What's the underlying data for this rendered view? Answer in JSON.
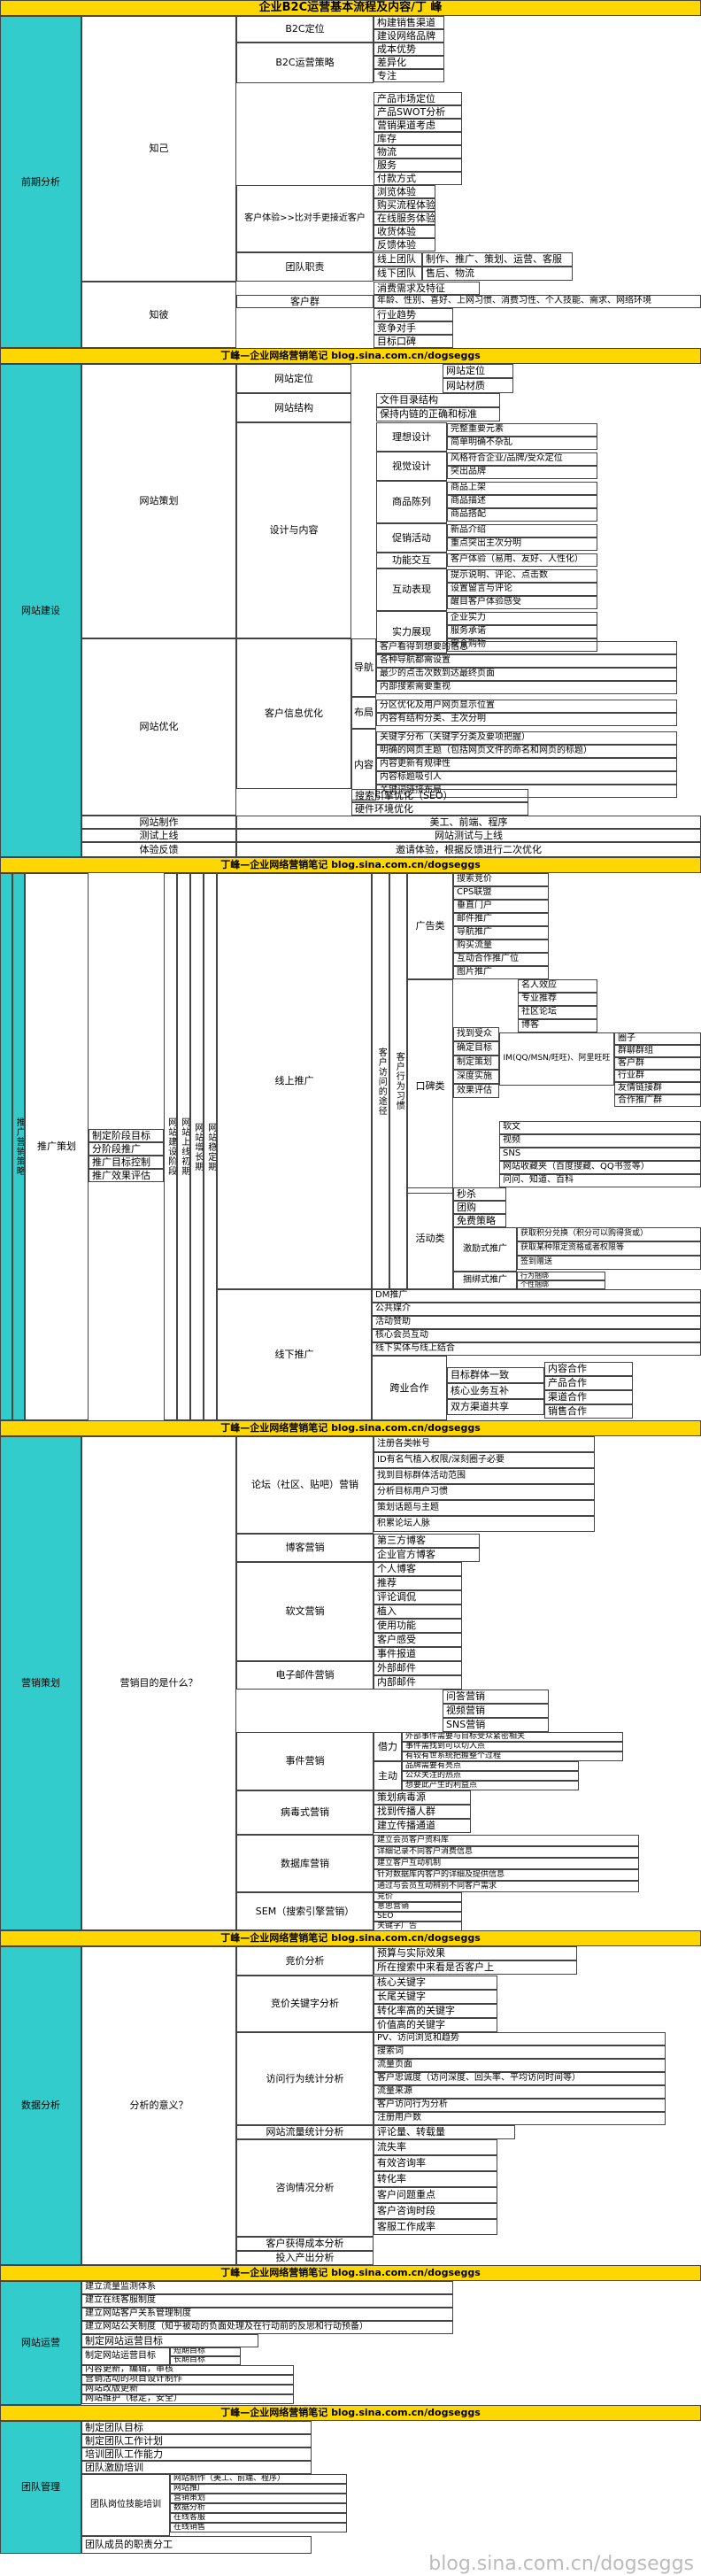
{
  "title": "企业B2C运营基本流程及内容/丁 峰",
  "banners": [
    "丁峰—企业网络营销笔记 blog.sina.com.cn/dogseggs",
    "丁峰—企业网络营销笔记 blog.sina.com.cn/dogseggs",
    "丁峰—企业网络营销笔记 blog.sina.com.cn/dogseggs",
    "丁峰—企业网络营销笔记 blog.sina.com.cn/dogseggs",
    "丁峰—企业网络营销笔记 blog.sina.com.cn/dogseggs",
    "丁峰—企业网络营销笔记 blog.sina.com.cn/dogseggs"
  ],
  "watermark": "blog.sina.com.cn/dogseggs",
  "colors": {
    "title_bg": "#ffd700",
    "banner_bg": "#ffd700",
    "section_bg": "#33cccc",
    "body_bg": "#ffffff"
  },
  "sections": {
    "s1": {
      "name": "前期分析",
      "zhiji": "知己",
      "zhibi": "知彼",
      "b2c_pos": "B2C定位",
      "b2c_pos_items": [
        "构建销售渠道",
        "建设网络品牌"
      ],
      "b2c_strategy": "B2C运营策略",
      "b2c_strategy_items": [
        "成本优势",
        "差异化",
        "专注"
      ],
      "standalone": [
        "产品市场定位",
        "产品SWOT分析",
        "营销渠道考虑",
        "库存",
        "物流",
        "服务",
        "付款方式"
      ],
      "experience": "客户体验>>比对手更接近客户",
      "experience_items": [
        "浏览体验",
        "购买流程体验",
        "在线服务体验",
        "收货体验",
        "反馈体验"
      ],
      "team": "团队职责",
      "team_rows": [
        [
          "线上团队",
          "制作、推广、策划、运营、客服"
        ],
        [
          "线下团队",
          "售后、物流"
        ]
      ],
      "consumer": "消费需求及特征",
      "customer": "客户群",
      "customer_detail": "年龄、性别、喜好、上网习惯、消费习性、个人技能、需求、网络环境",
      "competitors": [
        "行业趋势",
        "竞争对手",
        "目标口碑"
      ]
    },
    "s2": {
      "name": "网站建设",
      "planning": "网站策划",
      "optimize": "网站优化",
      "positioning": "网站定位",
      "theme": "网站材质",
      "structure": "网站结构",
      "structure_items": [
        "文件目录结构",
        "保持内链的正确和标准"
      ],
      "design": "设计与内容",
      "design_groups": [
        {
          "name": "理想设计",
          "items": [
            "完整重要元素",
            "简单明确不杂乱"
          ]
        },
        {
          "name": "视觉设计",
          "items": [
            "风格符合企业/品牌/受众定位",
            "突出品牌"
          ]
        },
        {
          "name": "商品陈列",
          "items": [
            "商品上架",
            "商品描述",
            "商品搭配"
          ]
        },
        {
          "name": "促销活动",
          "items": [
            "新品介绍",
            "重点突出主次分明"
          ]
        },
        {
          "name": "功能交互",
          "items": [
            "客户体验（易用、友好、人性化）"
          ]
        },
        {
          "name": "互动表现",
          "items": [
            "提示说明、评论、点击数",
            "设置留言与评论",
            "醒目客户体验感受"
          ]
        },
        {
          "name": "实力展现",
          "items": [
            "企业实力",
            "服务承诺",
            "安全购物"
          ]
        }
      ],
      "customer_info": "客户信息优化",
      "info_groups": [
        {
          "name": "导航",
          "items": [
            "客户看得到想要的信息",
            "各种导航都需设置",
            "最少的点击次数到达最终页面",
            "内部搜索需要重视"
          ]
        },
        {
          "name": "布局",
          "items": [
            "分区优化及用户网页显示位置",
            "内容有结构分类、主次分明"
          ]
        },
        {
          "name": "内容",
          "items": [
            "关键字分布（关键字分类及要项把握）",
            "明确的网页主题（包括网页文件的命名和网页的标题）",
            "内容更新有规律性",
            "内容标题吸引人",
            "关键词链接布局"
          ]
        }
      ],
      "seo_items": [
        "搜索引擎优化（SEO）",
        "硬件环境优化"
      ],
      "make": "网站制作",
      "make_detail": "美工、前端、程序",
      "test": "测试上线",
      "test_detail": "网站测试与上线",
      "experience": "体验反馈",
      "experience_detail": "邀请体验，根据反馈进行二次优化"
    },
    "s3": {
      "name": "推广营销策略",
      "plan": "推广策划",
      "plan_items": [
        "制定阶段目标",
        "分阶段推广",
        "推广目标控制",
        "推广效果评估"
      ],
      "vcols": [
        "网站建设阶段",
        "网站上线初期",
        "网站增长期",
        "网站稳定期"
      ],
      "online": "线上推广",
      "offline": "线下推广",
      "channel": "客户访问的途径",
      "inside": "客户行为习惯",
      "ads": "广告类",
      "ad_items": [
        "搜索竞价",
        "CPS联盟",
        "垂直门户",
        "邮件推广",
        "导航推广",
        "购买流量",
        "互动合作推广位",
        "图片推广"
      ],
      "social": "口碑类",
      "social_sub": [
        "找到受众",
        "确定目标",
        "制定策划",
        "深度实施",
        "效果评估"
      ],
      "social_top": [
        "名人效应",
        "专业推荐",
        "社区论坛",
        "博客"
      ],
      "im": "IM(QQ/MSN/旺旺)、阿里旺旺",
      "im_items": [
        "圈子",
        "群聊群组",
        "客户群",
        "行业群",
        "友情链接群",
        "合作推广群"
      ],
      "soft": [
        "软文",
        "视频",
        "SNS",
        "网站收藏夹（百度搜藏、QQ书签等）",
        "问问、知道、百科"
      ],
      "activity": "活动类",
      "activity_items": [
        "秒杀",
        "团购",
        "免费策略"
      ],
      "incentive": "激励式推广",
      "incentive_items": [
        "获取积分兑换（积分可以购得货或）",
        "获取某种限定资格或者权限等",
        "签到赠送"
      ],
      "bundle": "捆绑式推广",
      "bundle_items": [
        "行为捆绑",
        "个性捆绑"
      ],
      "offline_items": [
        "DM推广",
        "公共媒介",
        "活动赞助",
        "核心会员互动",
        "线下实体与线上结合"
      ],
      "cross": "跨业合作",
      "cross_a": [
        "目标群体一致",
        "核心业务互补",
        "双方渠道共享"
      ],
      "cross_b": [
        "内容合作",
        "产品合作",
        "渠道合作",
        "销售合作"
      ]
    },
    "s4": {
      "name": "营销策划",
      "goal": "营销目的是什么？",
      "forum": "论坛（社区、贴吧）营销",
      "forum_items": [
        "注册各类帐号",
        "ID有名气植入权限/深刻圈子必要",
        "找到目标群体活动范围",
        "分析目标用户习惯",
        "策划话题与主题",
        "积累论坛人脉"
      ],
      "blog": "博客营销",
      "blog_items": [
        "第三方博客",
        "企业官方博客"
      ],
      "soft": "软文营销",
      "soft_items": [
        "个人博客",
        "推荐",
        "评论调侃",
        "植入",
        "使用功能",
        "客户感受",
        "事件报道"
      ],
      "email": "电子邮件营销",
      "email_items": [
        "外部邮件",
        "内部邮件"
      ],
      "extra": [
        "问答营销",
        "视频营销",
        "SNS营销"
      ],
      "event": "事件营销",
      "borrow": "借力",
      "borrow_items": [
        "外部事件需要与目标受众紧密相关",
        "事件需找到可以切入点",
        "有较有世系统把握整个过程"
      ],
      "active": "主动",
      "active_items": [
        "品牌需要有亮点",
        "公众关注的热点",
        "想要此产生的利益点"
      ],
      "viral": "病毒式营销",
      "viral_items": [
        "策划病毒源",
        "找到传播人群",
        "建立传播通道"
      ],
      "db": "数据库营销",
      "db_items": [
        "建立会员客户资料库",
        "详细记录不同客户消费信息",
        "建立客户互动机制",
        "针对数据库内客户的详细及提供信息",
        "通过与会员互动辨别不同客户需求"
      ],
      "sem": "SEM（搜索引擎营销）",
      "sem_items": [
        "竞价",
        "意思营销",
        "SEO",
        "关键字广告"
      ]
    },
    "s5": {
      "name": "数据分析",
      "meaning": "分析的意义？",
      "bid": "竞价分析",
      "bid_items": [
        "预算与实际效果",
        "所在搜索中来看是否客户上"
      ],
      "kw": "竞价关键字分析",
      "kw_items": [
        "核心关键字",
        "长尾关键字",
        "转化率高的关键字",
        "价值高的关键字"
      ],
      "visit": "访问行为统计分析",
      "visit_items": [
        "PV、访问浏览和趋势",
        "搜索词",
        "流量页面",
        "客户忠诚度（访问深度、回头率、平均访问时间等）",
        "流量来源",
        "客户访问行为分析",
        "注册用户数"
      ],
      "traffic": "网站流量统计分析",
      "traffic_items": [
        "评论量、转载量"
      ],
      "consult": "咨询情况分析",
      "consult_items": [
        "流失率",
        "有效咨询率",
        "转化率",
        "客户问题重点",
        "客户咨询时段",
        "客服工作成率"
      ],
      "cost": "客户获得成本分析",
      "roi": "投入产出分析"
    },
    "s6": {
      "name": "网站运营",
      "items": [
        "建立流量监测体系",
        "建立在线客服制度",
        "建立网站客户关系管理制度",
        "建立网站公关制度（知乎被动的负面处理及在行动前的反思和行动预备）",
        "制定网站运营目标"
      ],
      "target": "制定网站运营目标",
      "target_items": [
        "短期目标",
        "长期目标"
      ],
      "more": [
        "内容更新，编辑，审核",
        "营销活动的项目设计制作",
        "网站改版更新",
        "网站维护（稳定，安全）"
      ]
    },
    "s7": {
      "name": "团队管理",
      "items": [
        "制定团队目标",
        "制定团队工作计划",
        "培训团队工作能力",
        "团队激励培训"
      ],
      "skill": "团队岗位技能培训",
      "skill_items": [
        "网站制作（美工、前端、程序）",
        "网站推广",
        "营销策划",
        "数据分析",
        "在线客服",
        "在线销售"
      ],
      "last": "团队成员的职责分工"
    }
  }
}
